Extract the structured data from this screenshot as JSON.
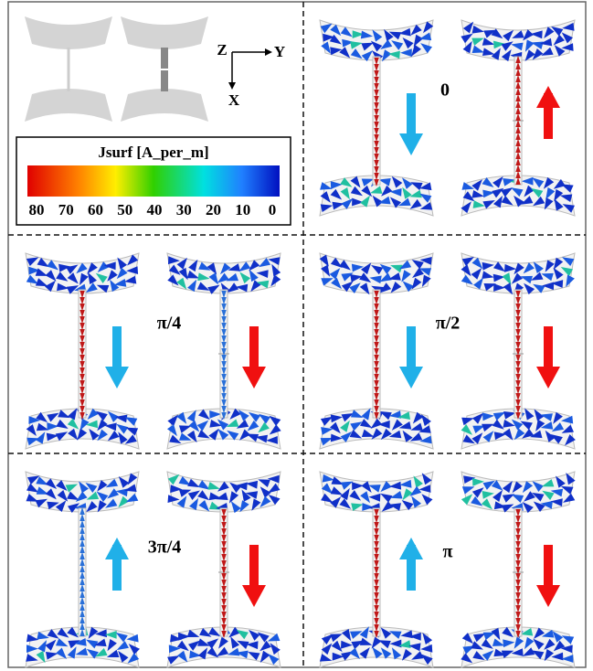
{
  "legend": {
    "axes": {
      "z": "Z",
      "y": "Y",
      "x": "X"
    },
    "colorbar": {
      "title": "Jsurf  [A_per_m]",
      "ticks": [
        80,
        70,
        60,
        50,
        40,
        30,
        20,
        10,
        0
      ]
    }
  },
  "panels": [
    {
      "label": "0"
    },
    {
      "label": "π/4"
    },
    {
      "label": "π/2"
    },
    {
      "label": "3π/4"
    },
    {
      "label": "π"
    }
  ]
}
